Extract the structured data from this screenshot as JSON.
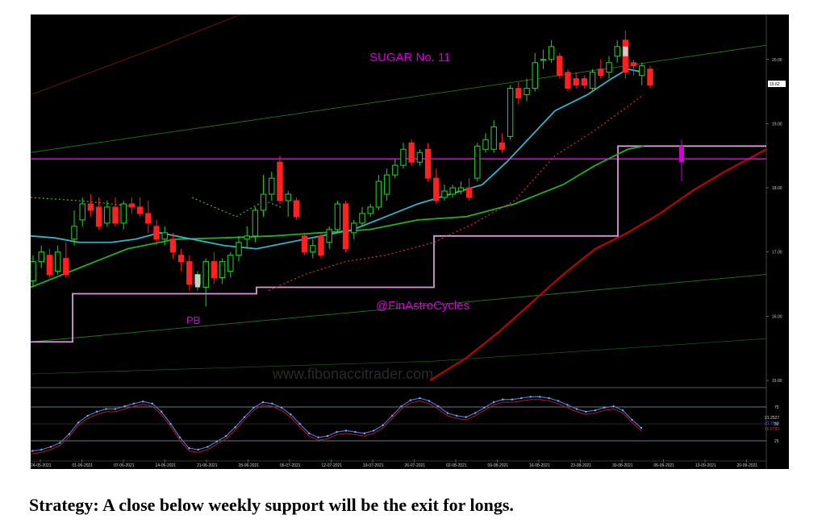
{
  "chart_data": [
    {
      "type": "candlestick",
      "title": "SUGAR No. 11",
      "annotations": [
        "@FinAstroCycles",
        "PB",
        "www.fibonaccitrader.com"
      ],
      "x_tick_labels": [
        "24-05-2021",
        "01-06-2021",
        "07-06-2021",
        "14-06-2021",
        "21-06-2021",
        "28-06-2021",
        "06-07-2021",
        "12-07-2021",
        "19-07-2021",
        "26-07-2021",
        "02-08-2021",
        "09-08-2021",
        "16-08-2021",
        "23-08-2021",
        "30-08-2021",
        "06-09-2021",
        "13-09-2021",
        "20-09-2021"
      ],
      "y_tick_labels": [
        "20.00",
        "19.00",
        "18.00",
        "17.00",
        "16.00",
        "15.00"
      ],
      "ylim": [
        14.9,
        20.7
      ],
      "last_price_label": "19.62",
      "candles": [
        {
          "o": 16.55,
          "h": 16.95,
          "l": 16.45,
          "c": 16.85
        },
        {
          "o": 16.85,
          "h": 17.1,
          "l": 16.75,
          "c": 17.0
        },
        {
          "o": 16.95,
          "h": 17.05,
          "l": 16.6,
          "c": 16.65
        },
        {
          "o": 16.7,
          "h": 17.1,
          "l": 16.65,
          "c": 17.0
        },
        {
          "o": 16.9,
          "h": 17.15,
          "l": 16.6,
          "c": 16.65
        },
        {
          "o": 17.2,
          "h": 17.65,
          "l": 17.1,
          "c": 17.4
        },
        {
          "o": 17.5,
          "h": 17.85,
          "l": 17.4,
          "c": 17.75
        },
        {
          "o": 17.75,
          "h": 17.9,
          "l": 17.55,
          "c": 17.65
        },
        {
          "o": 17.7,
          "h": 17.85,
          "l": 17.35,
          "c": 17.4
        },
        {
          "o": 17.45,
          "h": 17.8,
          "l": 17.4,
          "c": 17.7
        },
        {
          "o": 17.7,
          "h": 17.85,
          "l": 17.4,
          "c": 17.45
        },
        {
          "o": 17.45,
          "h": 17.8,
          "l": 17.35,
          "c": 17.75
        },
        {
          "o": 17.75,
          "h": 17.85,
          "l": 17.6,
          "c": 17.7
        },
        {
          "o": 17.7,
          "h": 17.85,
          "l": 17.55,
          "c": 17.6
        },
        {
          "o": 17.6,
          "h": 17.8,
          "l": 17.3,
          "c": 17.45
        },
        {
          "o": 17.4,
          "h": 17.5,
          "l": 17.1,
          "c": 17.2
        },
        {
          "o": 17.2,
          "h": 17.4,
          "l": 17.1,
          "c": 17.3
        },
        {
          "o": 17.2,
          "h": 17.3,
          "l": 16.9,
          "c": 17.0
        },
        {
          "o": 16.95,
          "h": 17.05,
          "l": 16.7,
          "c": 16.85
        },
        {
          "o": 16.85,
          "h": 16.95,
          "l": 16.4,
          "c": 16.5
        },
        {
          "o": 16.5,
          "h": 16.7,
          "l": 16.4,
          "c": 16.65
        },
        {
          "o": 16.45,
          "h": 16.9,
          "l": 16.15,
          "c": 16.85
        },
        {
          "o": 16.85,
          "h": 17.0,
          "l": 16.5,
          "c": 16.6
        },
        {
          "o": 16.6,
          "h": 16.9,
          "l": 16.5,
          "c": 16.85
        },
        {
          "o": 16.7,
          "h": 17.0,
          "l": 16.6,
          "c": 16.95
        },
        {
          "o": 16.95,
          "h": 17.25,
          "l": 16.85,
          "c": 17.15
        },
        {
          "o": 17.2,
          "h": 17.4,
          "l": 17.05,
          "c": 17.25
        },
        {
          "o": 17.25,
          "h": 17.7,
          "l": 17.15,
          "c": 17.65
        },
        {
          "o": 17.65,
          "h": 18.2,
          "l": 17.55,
          "c": 17.9
        },
        {
          "o": 17.9,
          "h": 18.25,
          "l": 17.8,
          "c": 18.15
        },
        {
          "o": 18.4,
          "h": 18.5,
          "l": 17.75,
          "c": 17.8
        },
        {
          "o": 17.8,
          "h": 17.95,
          "l": 17.55,
          "c": 17.9
        },
        {
          "o": 17.8,
          "h": 17.85,
          "l": 17.5,
          "c": 17.55
        },
        {
          "o": 17.25,
          "h": 17.3,
          "l": 16.95,
          "c": 17.0
        },
        {
          "o": 17.0,
          "h": 17.2,
          "l": 16.9,
          "c": 17.1
        },
        {
          "o": 17.25,
          "h": 17.3,
          "l": 16.9,
          "c": 16.95
        },
        {
          "o": 17.15,
          "h": 17.4,
          "l": 17.05,
          "c": 17.35
        },
        {
          "o": 17.35,
          "h": 17.8,
          "l": 17.3,
          "c": 17.75
        },
        {
          "o": 17.75,
          "h": 17.8,
          "l": 17.0,
          "c": 17.05
        },
        {
          "o": 17.3,
          "h": 17.5,
          "l": 17.2,
          "c": 17.45
        },
        {
          "o": 17.45,
          "h": 17.7,
          "l": 17.4,
          "c": 17.6
        },
        {
          "o": 17.6,
          "h": 17.75,
          "l": 17.55,
          "c": 17.7
        },
        {
          "o": 17.7,
          "h": 18.2,
          "l": 17.65,
          "c": 18.1
        },
        {
          "o": 17.9,
          "h": 18.3,
          "l": 17.8,
          "c": 18.2
        },
        {
          "o": 18.2,
          "h": 18.45,
          "l": 18.15,
          "c": 18.35
        },
        {
          "o": 18.35,
          "h": 18.7,
          "l": 18.3,
          "c": 18.6
        },
        {
          "o": 18.7,
          "h": 18.75,
          "l": 18.35,
          "c": 18.4
        },
        {
          "o": 18.4,
          "h": 18.6,
          "l": 18.35,
          "c": 18.55
        },
        {
          "o": 18.6,
          "h": 18.7,
          "l": 18.1,
          "c": 18.15
        },
        {
          "o": 18.15,
          "h": 18.3,
          "l": 17.75,
          "c": 17.8
        },
        {
          "o": 17.85,
          "h": 18.05,
          "l": 17.8,
          "c": 17.95
        },
        {
          "o": 17.9,
          "h": 18.05,
          "l": 17.85,
          "c": 18.0
        },
        {
          "o": 17.95,
          "h": 18.1,
          "l": 17.9,
          "c": 18.0
        },
        {
          "o": 18.0,
          "h": 18.15,
          "l": 17.8,
          "c": 17.85
        },
        {
          "o": 18.15,
          "h": 18.7,
          "l": 18.1,
          "c": 18.65
        },
        {
          "o": 18.6,
          "h": 18.85,
          "l": 18.55,
          "c": 18.75
        },
        {
          "o": 18.6,
          "h": 19.05,
          "l": 18.55,
          "c": 18.95
        },
        {
          "o": 18.7,
          "h": 18.85,
          "l": 18.55,
          "c": 18.6
        },
        {
          "o": 18.8,
          "h": 19.6,
          "l": 18.75,
          "c": 19.55
        },
        {
          "o": 19.55,
          "h": 19.65,
          "l": 19.3,
          "c": 19.4
        },
        {
          "o": 19.45,
          "h": 19.7,
          "l": 19.35,
          "c": 19.55
        },
        {
          "o": 19.55,
          "h": 20.1,
          "l": 19.5,
          "c": 19.95
        },
        {
          "o": 20.0,
          "h": 20.15,
          "l": 19.85,
          "c": 20.0
        },
        {
          "o": 20.0,
          "h": 20.3,
          "l": 19.95,
          "c": 20.2
        },
        {
          "o": 20.05,
          "h": 20.1,
          "l": 19.7,
          "c": 19.75
        },
        {
          "o": 19.8,
          "h": 19.85,
          "l": 19.5,
          "c": 19.55
        },
        {
          "o": 19.7,
          "h": 19.8,
          "l": 19.55,
          "c": 19.6
        },
        {
          "o": 19.7,
          "h": 19.75,
          "l": 19.55,
          "c": 19.6
        },
        {
          "o": 19.55,
          "h": 19.85,
          "l": 19.5,
          "c": 19.8
        },
        {
          "o": 19.85,
          "h": 20.0,
          "l": 19.7,
          "c": 19.75
        },
        {
          "o": 19.8,
          "h": 20.05,
          "l": 19.7,
          "c": 19.95
        },
        {
          "o": 20.05,
          "h": 20.3,
          "l": 19.95,
          "c": 20.2
        },
        {
          "o": 20.3,
          "h": 20.45,
          "l": 19.7,
          "c": 19.8
        },
        {
          "o": 19.95,
          "h": 20.0,
          "l": 19.75,
          "c": 19.9
        },
        {
          "o": 19.75,
          "h": 19.95,
          "l": 19.6,
          "c": 19.9
        },
        {
          "o": 19.85,
          "h": 19.9,
          "l": 19.55,
          "c": 19.6
        }
      ],
      "indicator_readouts": [
        "21.2527",
        "21.7550",
        "16.6783"
      ],
      "oscillator_levels": [
        75,
        50,
        25
      ]
    }
  ],
  "colors": {
    "background": "#000000",
    "bull_candle": "#22d622",
    "bear_candle": "#ff2020",
    "cyan_average": "#31b4c8",
    "green_average": "#22b022",
    "red_channel": "#c00000",
    "magenta": "#d400d4",
    "support_step": "#d79ad7",
    "oscillator_blue": "#4a76d8",
    "oscillator_red": "#b02020"
  },
  "strategy_text": "Strategy: A close below weekly support will be the exit for longs."
}
